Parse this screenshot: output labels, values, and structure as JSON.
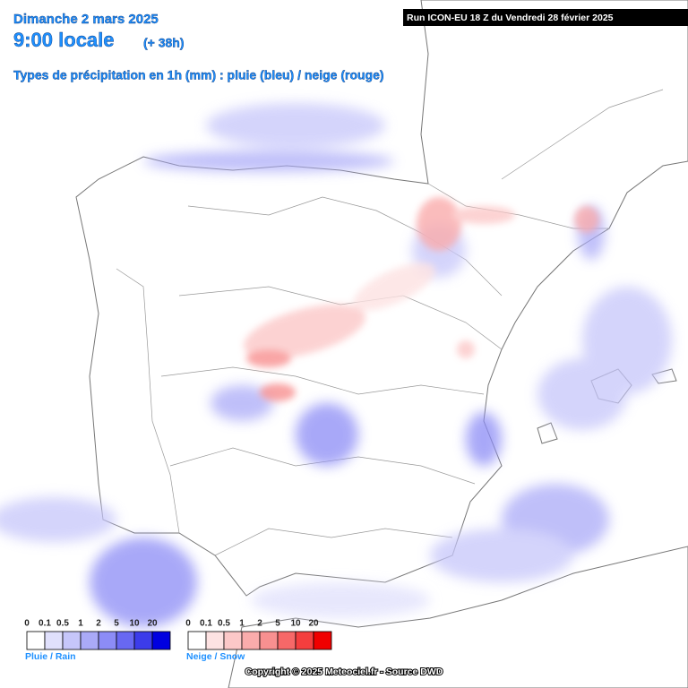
{
  "header": {
    "date": "Dimanche 2 mars 2025",
    "time": "9:00 locale",
    "lead": "(+ 38h)",
    "subtitle": "Types de précipitation en 1h (mm) : pluie (bleu) / neige (rouge)",
    "run": "Run ICON-EU 18 Z du Vendredi 28 février 2025"
  },
  "legend": {
    "rain": {
      "title": "Pluie / Rain",
      "labels": [
        "0",
        "0.1",
        "0.5",
        "1",
        "2",
        "5",
        "10",
        "20"
      ],
      "colors": [
        "#ffffff",
        "#e0e0fc",
        "#c6c6fa",
        "#aaaaf8",
        "#8c8cf6",
        "#6868f2",
        "#3c3cea",
        "#0000e0"
      ]
    },
    "snow": {
      "title": "Neige / Snow",
      "labels": [
        "0",
        "0.1",
        "0.5",
        "1",
        "2",
        "5",
        "10",
        "20"
      ],
      "colors": [
        "#ffffff",
        "#fde2e2",
        "#fcc8c8",
        "#faacac",
        "#f89090",
        "#f66868",
        "#f43e3e",
        "#f00000"
      ]
    }
  },
  "footer": {
    "copyright": "Copyright © 2025 Meteociel.fr - Source DWD"
  }
}
